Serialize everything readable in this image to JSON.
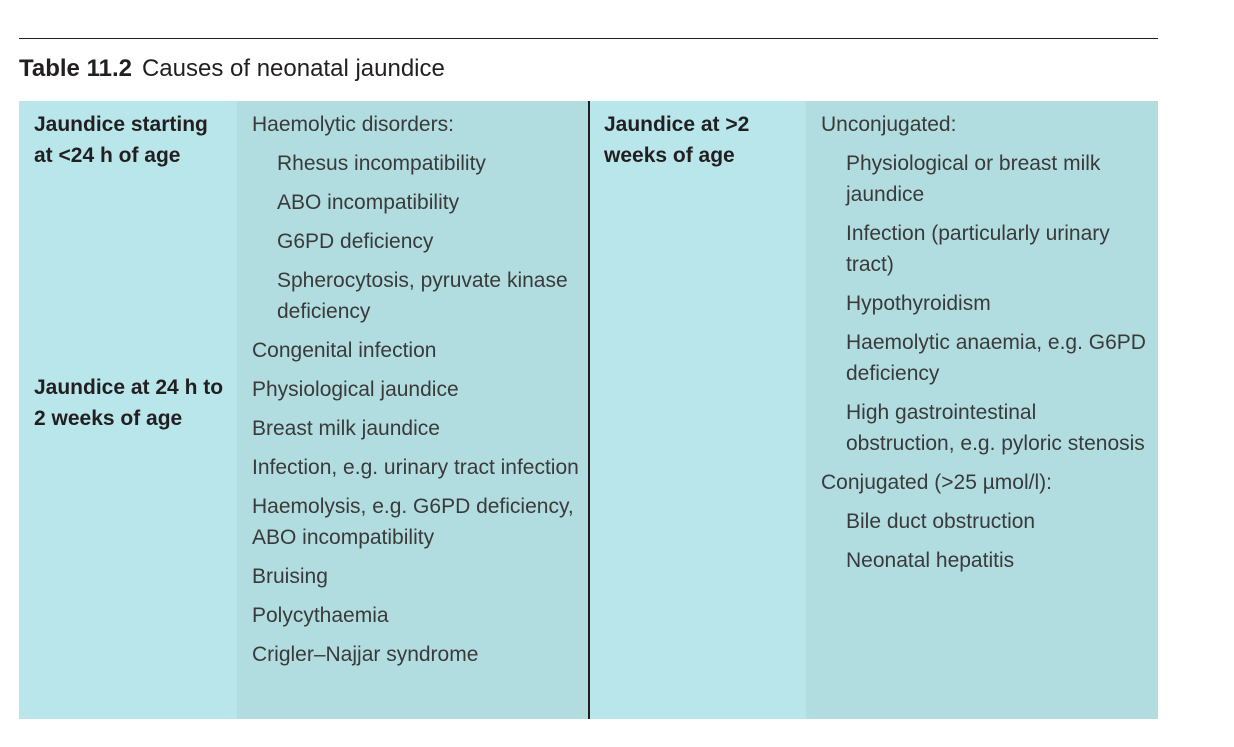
{
  "caption": {
    "number": "Table 11.2",
    "title": "Causes of neonatal jaundice"
  },
  "rows_left": [
    {
      "label": "Jaundice starting at <24 h of age"
    },
    {
      "label": "Jaundice at 24 h to 2 weeks of age"
    }
  ],
  "left_causes": [
    "Haemolytic disorders:",
    "Rhesus incompatibility",
    "ABO incompatibility",
    "G6PD deficiency",
    "Spherocytosis, pyruvate kinase deficiency",
    "Congenital infection",
    "Physiological jaundice",
    "Breast milk jaundice",
    "Infection, e.g. urinary tract infection",
    "Haemolysis, e.g. G6PD deficiency, ABO incompatibility",
    "Bruising",
    "Polycythaemia",
    "Crigler–Najjar syndrome"
  ],
  "right_label": "Jaundice at >2 weeks of age",
  "right_causes": [
    "Unconjugated:",
    "Physiological or breast milk jaundice",
    "Infection (particularly urinary tract)",
    "Hypothyroidism",
    "Haemolytic anaemia, e.g. G6PD deficiency",
    "High gastrointestinal obstruction, e.g. pyloric stenosis",
    "Conjugated (>25 µmol/l):",
    "Bile duct obstruction",
    "Neonatal hepatitis"
  ]
}
